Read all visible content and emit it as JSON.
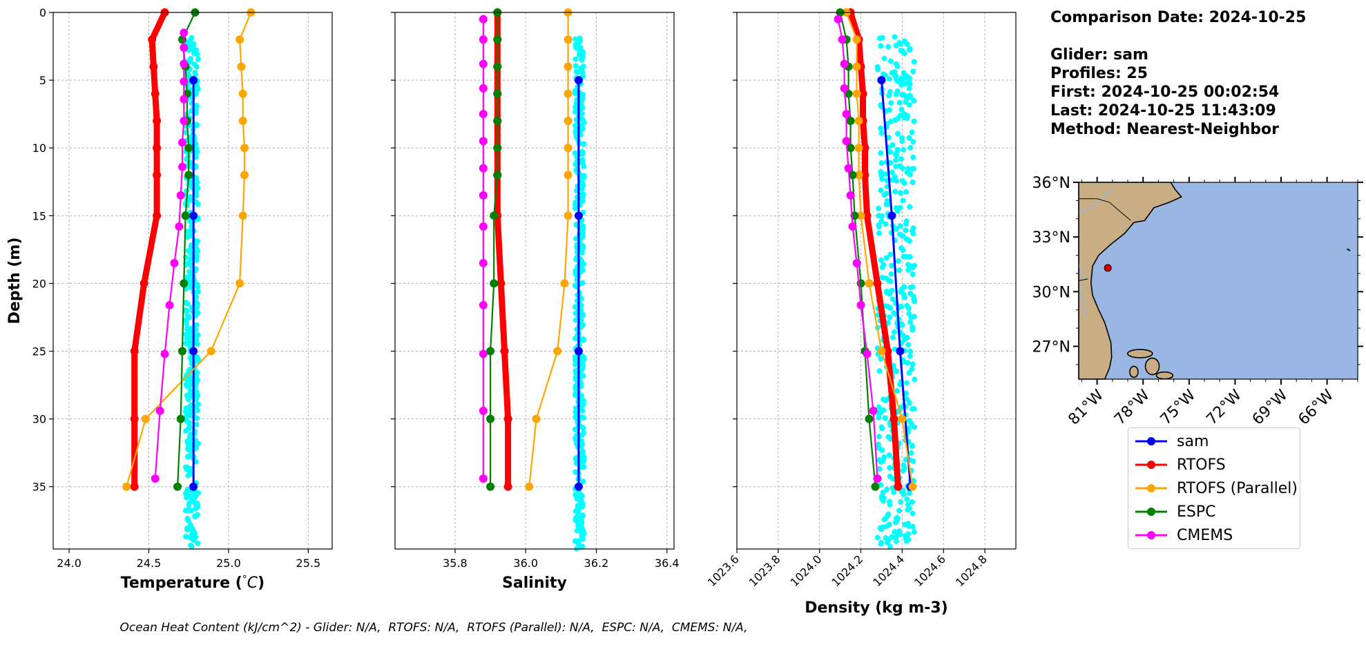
{
  "colors": {
    "sam": "#0000ff",
    "RTOFS": "#ff0000",
    "RTOFS (Parallel)": "#ffa500",
    "ESPC": "#008000",
    "CMEMS": "#ff00ff",
    "glider_points": "#00ffff",
    "ocean": "#9ab7e3",
    "land": "#c9ad85"
  },
  "info": {
    "comparison_date": "Comparison Date: 2024-10-25",
    "glider": "Glider: sam",
    "profiles": "Profiles: 25",
    "first": "First: 2024-10-25 00:02:54",
    "last": "Last: 2024-10-25 11:43:09",
    "method": "Method: Nearest-Neighbor"
  },
  "footer": "Ocean Heat Content (kJ/cm^2) - Glider: N/A,  RTOFS: N/A,  RTOFS (Parallel): N/A,  ESPC: N/A,  CMEMS: N/A,",
  "legend": [
    {
      "label": "sam",
      "color": "#0000ff"
    },
    {
      "label": "RTOFS",
      "color": "#ff0000"
    },
    {
      "label": "RTOFS (Parallel)",
      "color": "#ffa500"
    },
    {
      "label": "ESPC",
      "color": "#008000"
    },
    {
      "label": "CMEMS",
      "color": "#ff00ff"
    }
  ],
  "map": {
    "lat_ticks": [
      "36°N",
      "33°N",
      "30°N",
      "27°N"
    ],
    "lon_ticks": [
      "81°W",
      "78°W",
      "75°W",
      "72°W",
      "69°W",
      "66°W"
    ],
    "glider_location": {
      "lon": -80.3,
      "lat": 31.3
    }
  },
  "chart_data": [
    {
      "type": "line",
      "xlabel": "Temperature (°C)",
      "ylabel": "Depth (m)",
      "xlim": [
        23.9,
        25.65
      ],
      "ylim": [
        39.6,
        0
      ],
      "xticks": [
        "24.0",
        "24.5",
        "25.0",
        "25.5"
      ],
      "yticks": [
        "0",
        "5",
        "10",
        "15",
        "20",
        "25",
        "30",
        "35"
      ],
      "grid": true,
      "glider_scatter": {
        "x_min": 24.73,
        "x_max": 24.81,
        "depth_min": 1.8,
        "depth_max": 39.6
      },
      "series": [
        {
          "name": "sam",
          "depth": [
            5,
            15,
            25,
            35
          ],
          "values": [
            24.78,
            24.78,
            24.78,
            24.78
          ]
        },
        {
          "name": "RTOFS",
          "depth": [
            0,
            2,
            4,
            6,
            8,
            10,
            12,
            15,
            20,
            25,
            30,
            35
          ],
          "values": [
            24.6,
            24.52,
            24.53,
            24.54,
            24.55,
            24.55,
            24.55,
            24.55,
            24.47,
            24.41,
            24.41,
            24.41
          ]
        },
        {
          "name": "RTOFS (Parallel)",
          "depth": [
            0,
            2,
            4,
            6,
            8,
            10,
            12,
            15,
            20,
            25,
            30,
            35
          ],
          "values": [
            25.14,
            25.07,
            25.08,
            25.09,
            25.09,
            25.1,
            25.1,
            25.09,
            25.07,
            24.89,
            24.48,
            24.36
          ]
        },
        {
          "name": "ESPC",
          "depth": [
            0,
            2,
            4,
            6,
            8,
            10,
            12,
            15,
            20,
            25,
            30,
            35
          ],
          "values": [
            24.79,
            24.71,
            24.73,
            24.74,
            24.74,
            24.75,
            24.75,
            24.73,
            24.72,
            24.71,
            24.7,
            24.68
          ]
        },
        {
          "name": "CMEMS",
          "depth": [
            1.5,
            2.6,
            3.8,
            5.1,
            6.4,
            8.0,
            9.6,
            11.4,
            13.5,
            15.8,
            18.5,
            21.6,
            25.2,
            29.4,
            34.4
          ],
          "values": [
            24.72,
            24.72,
            24.72,
            24.72,
            24.72,
            24.72,
            24.71,
            24.71,
            24.7,
            24.69,
            24.66,
            24.63,
            24.6,
            24.57,
            24.54
          ]
        }
      ]
    },
    {
      "type": "line",
      "xlabel": "Salinity",
      "xlim": [
        35.63,
        36.42
      ],
      "ylim": [
        39.6,
        0
      ],
      "xticks": [
        "35.8",
        "36.0",
        "36.2",
        "36.4"
      ],
      "grid": true,
      "glider_scatter": {
        "x_min": 36.14,
        "x_max": 36.165,
        "depth_min": 1.8,
        "depth_max": 39.6
      },
      "series": [
        {
          "name": "sam",
          "depth": [
            5,
            15,
            25,
            35
          ],
          "values": [
            36.15,
            36.15,
            36.15,
            36.15
          ]
        },
        {
          "name": "RTOFS",
          "depth": [
            0,
            2,
            4,
            6,
            8,
            10,
            12,
            15,
            20,
            25,
            30,
            35
          ],
          "values": [
            35.92,
            35.92,
            35.92,
            35.92,
            35.92,
            35.92,
            35.92,
            35.92,
            35.93,
            35.94,
            35.95,
            35.95
          ]
        },
        {
          "name": "RTOFS (Parallel)",
          "depth": [
            0,
            2,
            4,
            6,
            8,
            10,
            12,
            15,
            20,
            25,
            30,
            35
          ],
          "values": [
            36.12,
            36.12,
            36.12,
            36.12,
            36.12,
            36.12,
            36.12,
            36.12,
            36.11,
            36.09,
            36.03,
            36.01
          ]
        },
        {
          "name": "ESPC",
          "depth": [
            0,
            2,
            4,
            6,
            8,
            10,
            12,
            15,
            20,
            25,
            30,
            35
          ],
          "values": [
            35.92,
            35.92,
            35.92,
            35.92,
            35.92,
            35.92,
            35.92,
            35.91,
            35.91,
            35.9,
            35.9,
            35.9
          ]
        },
        {
          "name": "CMEMS",
          "depth": [
            0.5,
            2.0,
            3.8,
            5.6,
            7.5,
            9.5,
            11.5,
            13.5,
            15.8,
            18.5,
            21.6,
            25.2,
            29.4,
            34.4
          ],
          "values": [
            35.88,
            35.88,
            35.88,
            35.88,
            35.88,
            35.88,
            35.88,
            35.88,
            35.88,
            35.88,
            35.88,
            35.88,
            35.88,
            35.88
          ]
        }
      ]
    },
    {
      "type": "line",
      "xlabel": "Density (kg m-3)",
      "xlim": [
        1023.6,
        1024.95
      ],
      "ylim": [
        39.6,
        0
      ],
      "xticks": [
        "1023.6",
        "1023.8",
        "1024.0",
        "1024.2",
        "1024.4",
        "1024.6",
        "1024.8"
      ],
      "grid": true,
      "glider_scatter": {
        "x_min": 1024.28,
        "x_max": 1024.46,
        "depth_min": 1.8,
        "depth_max": 39.6
      },
      "series": [
        {
          "name": "sam",
          "depth": [
            5,
            15,
            25,
            35
          ],
          "values": [
            1024.3,
            1024.35,
            1024.39,
            1024.44
          ]
        },
        {
          "name": "RTOFS",
          "depth": [
            0,
            2,
            4,
            6,
            8,
            10,
            12,
            15,
            20,
            25,
            30,
            35
          ],
          "values": [
            1024.15,
            1024.19,
            1024.2,
            1024.21,
            1024.21,
            1024.22,
            1024.22,
            1024.23,
            1024.28,
            1024.33,
            1024.36,
            1024.38
          ]
        },
        {
          "name": "RTOFS (Parallel)",
          "depth": [
            0,
            2,
            4,
            6,
            8,
            10,
            12,
            15,
            20,
            25,
            30,
            35
          ],
          "values": [
            1024.13,
            1024.18,
            1024.18,
            1024.18,
            1024.19,
            1024.19,
            1024.19,
            1024.2,
            1024.24,
            1024.3,
            1024.4,
            1024.45
          ]
        },
        {
          "name": "ESPC",
          "depth": [
            0,
            2,
            4,
            6,
            8,
            10,
            12,
            15,
            20,
            25,
            30,
            35
          ],
          "values": [
            1024.1,
            1024.13,
            1024.14,
            1024.14,
            1024.15,
            1024.15,
            1024.16,
            1024.17,
            1024.2,
            1024.22,
            1024.24,
            1024.27
          ]
        },
        {
          "name": "CMEMS",
          "depth": [
            0.5,
            2.0,
            3.8,
            5.6,
            7.5,
            9.5,
            11.5,
            13.5,
            15.8,
            18.5,
            21.6,
            25.2,
            29.4,
            34.4
          ],
          "values": [
            1024.09,
            1024.11,
            1024.12,
            1024.12,
            1024.13,
            1024.13,
            1024.14,
            1024.15,
            1024.16,
            1024.18,
            1024.2,
            1024.23,
            1024.26,
            1024.28
          ]
        }
      ]
    }
  ]
}
